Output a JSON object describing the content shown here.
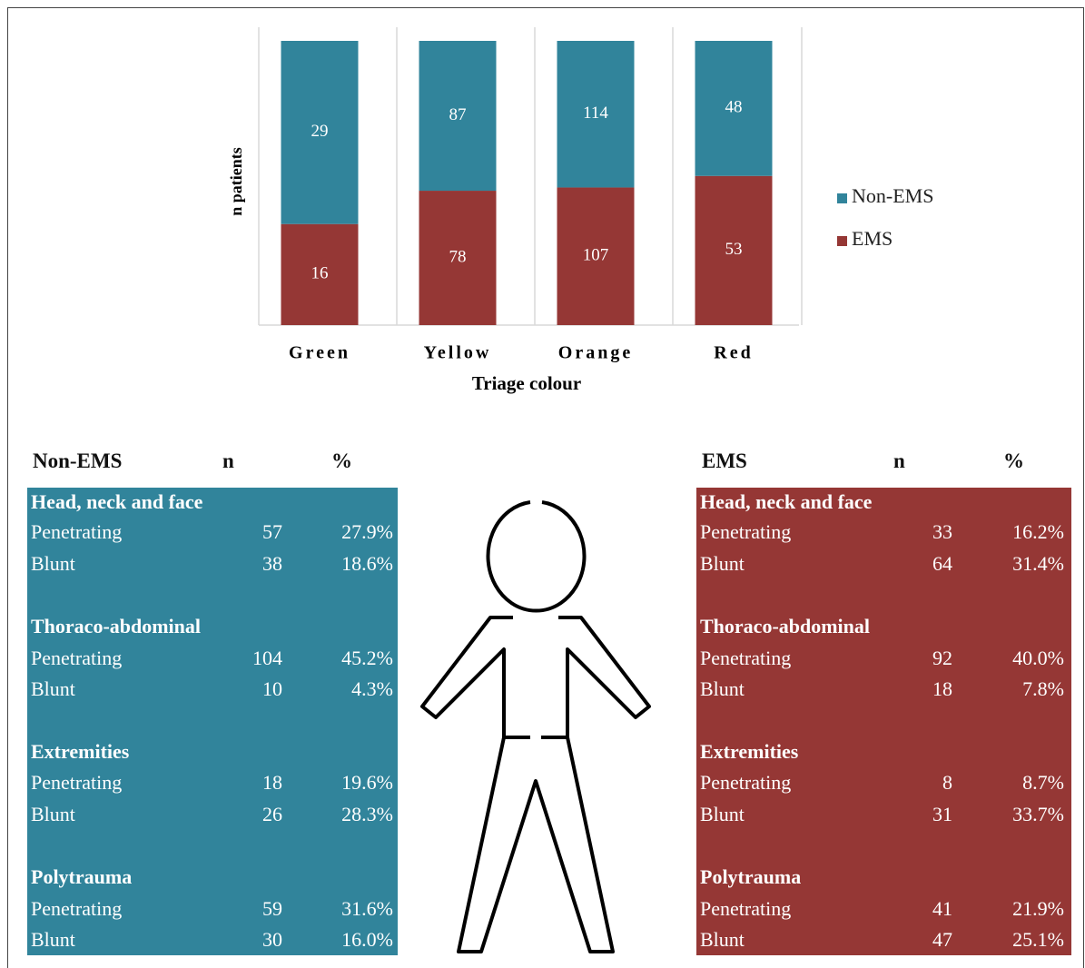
{
  "chart_data": {
    "type": "bar",
    "stacking": "percent",
    "categories": [
      "Green",
      "Yellow",
      "Orange",
      "Red"
    ],
    "series": [
      {
        "name": "EMS",
        "color": "#953735",
        "values": [
          16,
          78,
          107,
          53
        ]
      },
      {
        "name": "Non-EMS",
        "color": "#31849b",
        "values": [
          29,
          87,
          114,
          48
        ]
      }
    ],
    "x_label": "Triage colour",
    "y_label": "n patients",
    "legend": "right"
  },
  "tables": [
    {
      "color": "#31849b",
      "header": [
        "Non-EMS",
        "n",
        "%"
      ],
      "groups": [
        {
          "title": "Head, neck and face",
          "rows": [
            [
              "Penetrating",
              "57",
              "27.9%"
            ],
            [
              "Blunt",
              "38",
              "18.6%"
            ]
          ]
        },
        {
          "title": "Thoraco-abdominal",
          "rows": [
            [
              "Penetrating",
              "104",
              "45.2%"
            ],
            [
              "Blunt",
              "10",
              "4.3%"
            ]
          ]
        },
        {
          "title": "Extremities",
          "rows": [
            [
              "Penetrating",
              "18",
              "19.6%"
            ],
            [
              "Blunt",
              "26",
              "28.3%"
            ]
          ]
        },
        {
          "title": "Polytrauma",
          "rows": [
            [
              "Penetrating",
              "59",
              "31.6%"
            ],
            [
              "Blunt",
              "30",
              "16.0%"
            ]
          ]
        }
      ]
    },
    {
      "color": "#953735",
      "header": [
        "EMS",
        "n",
        "%"
      ],
      "groups": [
        {
          "title": "Head, neck and face",
          "rows": [
            [
              "Penetrating",
              "33",
              "16.2%"
            ],
            [
              "Blunt",
              "64",
              "31.4%"
            ]
          ]
        },
        {
          "title": "Thoraco-abdominal",
          "rows": [
            [
              "Penetrating",
              "92",
              "40.0%"
            ],
            [
              "Blunt",
              "18",
              "7.8%"
            ]
          ]
        },
        {
          "title": "Extremities",
          "rows": [
            [
              "Penetrating",
              "8",
              "8.7%"
            ],
            [
              "Blunt",
              "31",
              "33.7%"
            ]
          ]
        },
        {
          "title": "Polytrauma",
          "rows": [
            [
              "Penetrating",
              "41",
              "21.9%"
            ],
            [
              "Blunt",
              "47",
              "25.1%"
            ]
          ]
        }
      ]
    }
  ]
}
